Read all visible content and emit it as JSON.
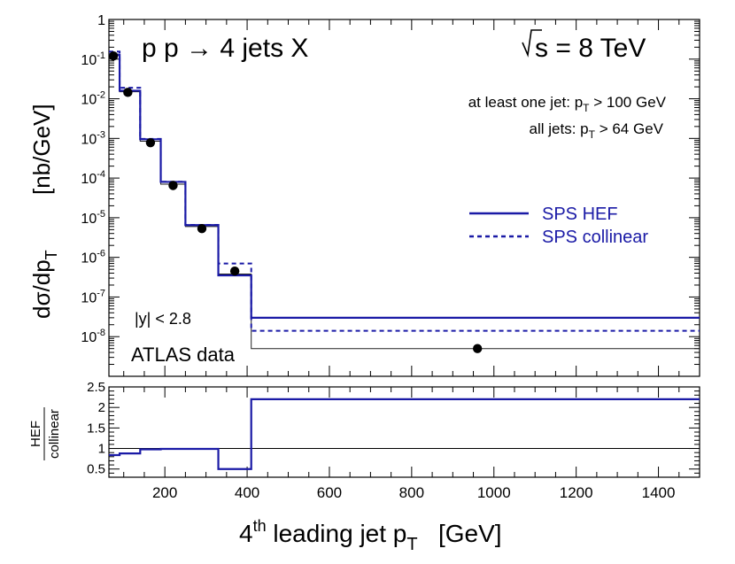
{
  "chart_data": {
    "type": "step",
    "title": "p p → 4 jets X",
    "energy_label": "s = 8 TeV",
    "cuts": {
      "line1": {
        "prefix": "at least one jet: p",
        "sub": "T",
        "suffix": " > 100 GeV"
      },
      "line2": {
        "prefix": "all jets: p",
        "sub": "T",
        "suffix": " > 64 GeV"
      }
    },
    "rapidity_label": "|y| < 2.8",
    "data_label": "ATLAS data",
    "x_axis": {
      "label_pre": "4",
      "label_sup": "th",
      "label_mid": " leading jet p",
      "label_sub": "T",
      "label_post": "   [GeV]",
      "range": [
        64,
        1500
      ],
      "ticks": [
        200,
        400,
        600,
        800,
        1000,
        1200,
        1400
      ],
      "tick_labels": [
        "200",
        "400",
        "600",
        "800",
        "1000",
        "1200",
        "1400"
      ]
    },
    "y_axis_top": {
      "label_main": "dσ/dp",
      "label_sub": "T",
      "label_units": "[nb/GeV]",
      "scale": "log",
      "range": [
        1e-09,
        1
      ],
      "ticks": [
        {
          "value": 1,
          "base": "1",
          "exp": ""
        },
        {
          "value": 0.1,
          "base": "10",
          "exp": "-1"
        },
        {
          "value": 0.01,
          "base": "10",
          "exp": "-2"
        },
        {
          "value": 0.001,
          "base": "10",
          "exp": "-3"
        },
        {
          "value": 0.0001,
          "base": "10",
          "exp": "-4"
        },
        {
          "value": 1e-05,
          "base": "10",
          "exp": "-5"
        },
        {
          "value": 1e-06,
          "base": "10",
          "exp": "-6"
        },
        {
          "value": 1e-07,
          "base": "10",
          "exp": "-7"
        },
        {
          "value": 1e-08,
          "base": "10",
          "exp": "-8"
        }
      ]
    },
    "y_axis_ratio": {
      "label_num": "HEF",
      "label_den": "collinear",
      "range": [
        0.3,
        2.5
      ],
      "ticks": [
        0.5,
        1,
        1.5,
        2,
        2.5
      ],
      "tick_labels": [
        "0.5",
        "1",
        "1.5",
        "2",
        "2.5"
      ],
      "reference": 1
    },
    "bin_edges": [
      64,
      90,
      140,
      190,
      250,
      330,
      410,
      1500
    ],
    "series": [
      {
        "name": "SPS HEF",
        "style": "solid",
        "color": "#1a1aa6",
        "values": [
          0.13,
          0.016,
          0.00095,
          8e-05,
          6.5e-06,
          3.5e-07,
          3e-08
        ]
      },
      {
        "name": "SPS collinear",
        "style": "dashed",
        "color": "#1a1aa6",
        "values": [
          0.155,
          0.019,
          0.00097,
          8.1e-05,
          6.6e-06,
          7e-07,
          1.4e-08
        ]
      },
      {
        "name": "ATLAS data histogram",
        "style": "thin",
        "color": "#222222",
        "values": [
          0.125,
          0.015,
          0.00085,
          7e-05,
          6e-06,
          3.8e-07,
          5e-09
        ]
      }
    ],
    "data_points": {
      "name": "ATLAS data",
      "x": [
        75,
        110,
        165,
        220,
        290,
        370,
        960
      ],
      "y": [
        0.12,
        0.0145,
        0.00078,
        6.5e-05,
        5.3e-06,
        4.5e-07,
        5e-09
      ]
    },
    "ratio": {
      "name": "HEF / collinear",
      "values": [
        0.84,
        0.88,
        0.98,
        0.99,
        0.99,
        0.5,
        2.2
      ]
    },
    "legend": {
      "position": "right",
      "entries": [
        "SPS HEF",
        "SPS collinear"
      ]
    }
  }
}
